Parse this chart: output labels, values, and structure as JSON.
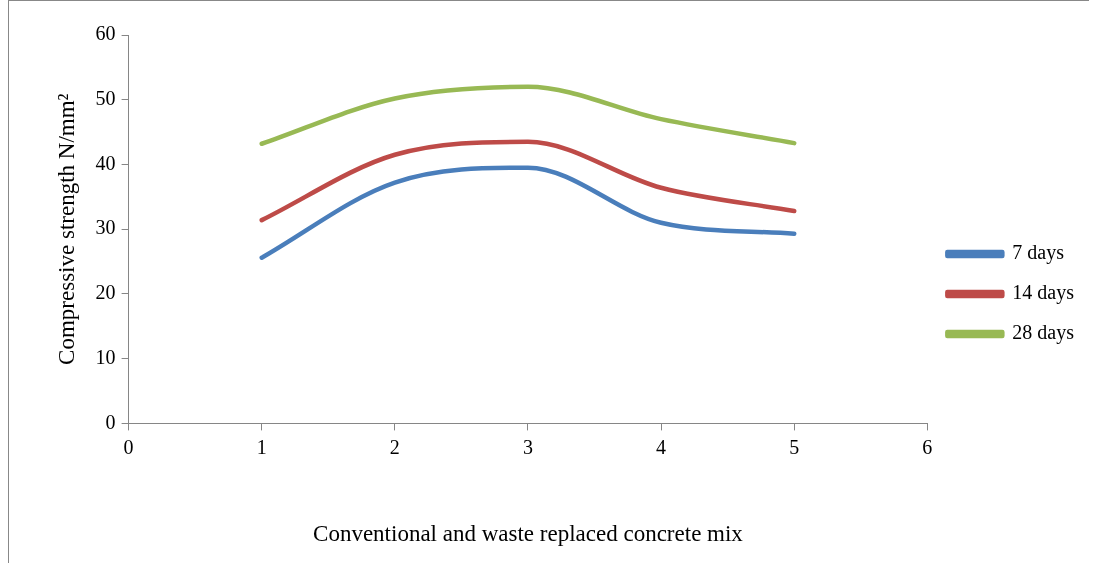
{
  "chart_data": {
    "type": "line",
    "xlabel": "Conventional and waste replaced concrete mix",
    "ylabel": "Compressive strength N/mm²",
    "x": [
      1,
      2,
      3,
      4,
      5
    ],
    "series": [
      {
        "name": "7 days",
        "color": "#4a7ebb",
        "values": [
          25.6,
          37.2,
          39.5,
          31,
          29.3
        ]
      },
      {
        "name": "14 days",
        "color": "#be4b48",
        "values": [
          31.4,
          41.5,
          43.5,
          36.4,
          32.8
        ]
      },
      {
        "name": "28 days",
        "color": "#98b954",
        "values": [
          43.2,
          50.2,
          52,
          47,
          43.3
        ]
      }
    ],
    "xlim": [
      0,
      6
    ],
    "xticks": [
      0,
      1,
      2,
      3,
      4,
      5,
      6
    ],
    "ylim": [
      0,
      60
    ],
    "yticks": [
      0,
      10,
      20,
      30,
      40,
      50,
      60
    ],
    "grid": false,
    "legend": "right",
    "marker": "none",
    "line_style": "solid"
  }
}
